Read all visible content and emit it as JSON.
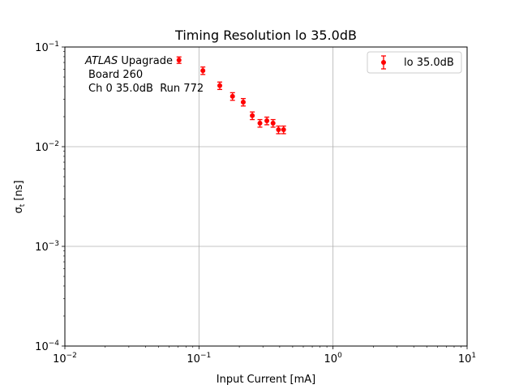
{
  "chart_data": {
    "type": "scatter",
    "title": "Timing Resolution lo 35.0dB",
    "xlabel": "Input Current [mA]",
    "ylabel": "σt [ns]",
    "xscale": "log",
    "yscale": "log",
    "xlim": [
      0.01,
      10
    ],
    "ylim": [
      0.0001,
      0.1
    ],
    "grid": true,
    "legend_position": "top-right",
    "x_ticks": [
      {
        "value": 0.01,
        "base": "10",
        "exp": "−2"
      },
      {
        "value": 0.1,
        "base": "10",
        "exp": "−1"
      },
      {
        "value": 1,
        "base": "10",
        "exp": "0"
      },
      {
        "value": 10,
        "base": "10",
        "exp": "1"
      }
    ],
    "y_ticks": [
      {
        "value": 0.0001,
        "base": "10",
        "exp": "−4"
      },
      {
        "value": 0.001,
        "base": "10",
        "exp": "−3"
      },
      {
        "value": 0.01,
        "base": "10",
        "exp": "−2"
      },
      {
        "value": 0.1,
        "base": "10",
        "exp": "−1"
      }
    ],
    "annotation": {
      "line1_italic": "ATLAS",
      "line1_rest": " Upagrade",
      "line2": "Board 260",
      "line3": "Ch 0 35.0dB  Run 772"
    },
    "series": [
      {
        "name": "lo 35.0dB",
        "color": "#ff0000",
        "points": [
          {
            "x": 0.071,
            "y": 0.074,
            "err": 0.0055
          },
          {
            "x": 0.107,
            "y": 0.058,
            "err": 0.005
          },
          {
            "x": 0.143,
            "y": 0.041,
            "err": 0.0035
          },
          {
            "x": 0.178,
            "y": 0.032,
            "err": 0.0028
          },
          {
            "x": 0.214,
            "y": 0.028,
            "err": 0.0024
          },
          {
            "x": 0.25,
            "y": 0.0205,
            "err": 0.0018
          },
          {
            "x": 0.285,
            "y": 0.0172,
            "err": 0.0015
          },
          {
            "x": 0.321,
            "y": 0.0182,
            "err": 0.0016
          },
          {
            "x": 0.357,
            "y": 0.0172,
            "err": 0.0015
          },
          {
            "x": 0.392,
            "y": 0.0148,
            "err": 0.0013
          },
          {
            "x": 0.428,
            "y": 0.0148,
            "err": 0.0013
          }
        ]
      }
    ]
  }
}
